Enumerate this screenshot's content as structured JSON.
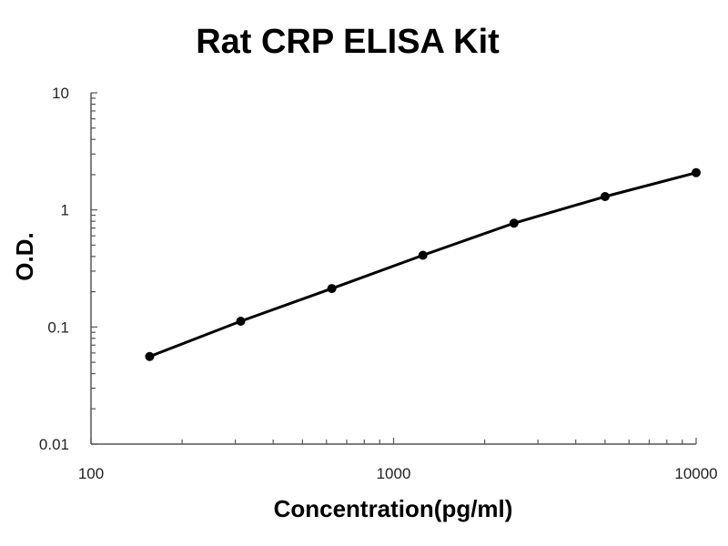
{
  "chart_data": {
    "type": "line",
    "title": "Rat CRP ELISA Kit",
    "xlabel": "Concentration(pg/ml)",
    "ylabel": "O.D.",
    "x_scale": "log",
    "y_scale": "log",
    "xlim": [
      100,
      10000
    ],
    "ylim": [
      0.01,
      10
    ],
    "x_ticks": [
      "100",
      "1000",
      "10000"
    ],
    "y_ticks": [
      "0.01",
      "0.1",
      "1",
      "10"
    ],
    "grid": false,
    "series": [
      {
        "x": [
          156.25,
          312.5,
          625,
          1250,
          2500,
          5000,
          10000
        ],
        "y": [
          0.056,
          0.112,
          0.213,
          0.41,
          0.77,
          1.3,
          2.08
        ],
        "color": "#000000",
        "marker": "circle"
      }
    ]
  }
}
